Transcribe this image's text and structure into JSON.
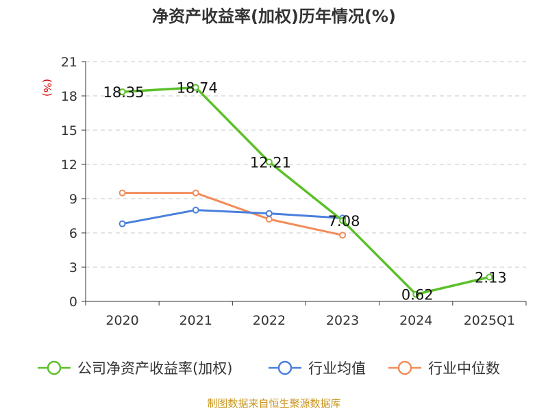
{
  "chart_data": {
    "type": "line",
    "title": "净资产收益率(加权)历年情况(%)",
    "unit_label": "(%)",
    "categories": [
      "2020",
      "2021",
      "2022",
      "2023",
      "2024",
      "2025Q1"
    ],
    "ylim": [
      0,
      21
    ],
    "yticks": [
      "0",
      "3",
      "6",
      "9",
      "12",
      "15",
      "18",
      "21"
    ],
    "grid": true,
    "legend_position": "bottom",
    "series": [
      {
        "name": "公司净资产收益率(加权)",
        "color": "#5cc02a",
        "values": [
          18.35,
          18.74,
          12.21,
          7.08,
          0.62,
          2.13
        ],
        "labels": [
          "18.35",
          "18.74",
          "12.21",
          "7.08",
          "0.62",
          "2.13"
        ]
      },
      {
        "name": "行业均值",
        "color": "#4a7fdc",
        "values": [
          6.8,
          8.0,
          7.7,
          7.3,
          null,
          null
        ]
      },
      {
        "name": "行业中位数",
        "color": "#f28c5a",
        "values": [
          9.5,
          9.5,
          7.2,
          5.8,
          null,
          null
        ]
      }
    ],
    "source": "制图数据来自恒生聚源数据库"
  }
}
